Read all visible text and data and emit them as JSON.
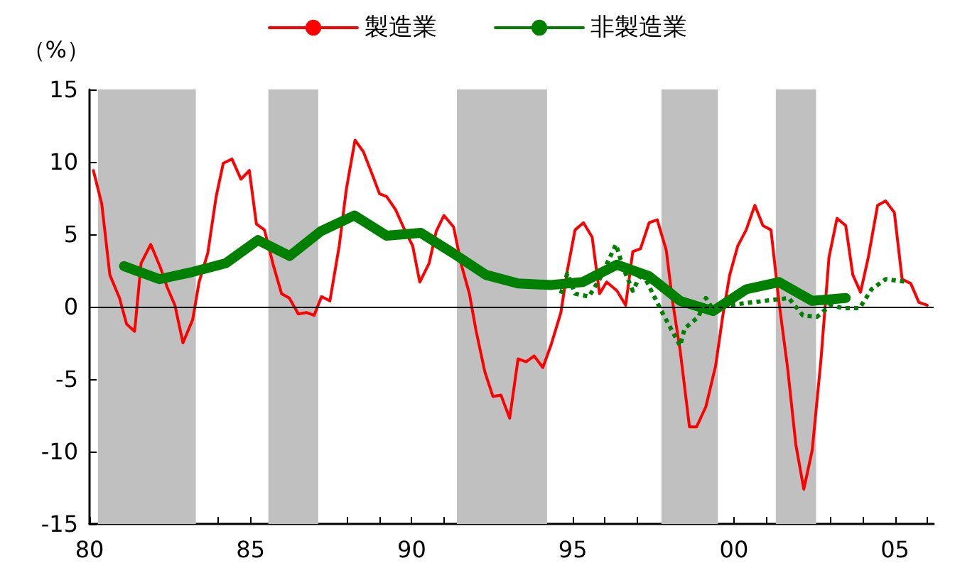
{
  "chart_data": {
    "type": "line",
    "ylabel": "（%）",
    "xlim": [
      1980,
      2006.2
    ],
    "ylim": [
      -15,
      15
    ],
    "xticks": [
      {
        "value": 1980,
        "label": "80"
      },
      {
        "value": 1981,
        "label": null
      },
      {
        "value": 1982,
        "label": null
      },
      {
        "value": 1983,
        "label": null
      },
      {
        "value": 1984,
        "label": null
      },
      {
        "value": 1985,
        "label": "85"
      },
      {
        "value": 1986,
        "label": null
      },
      {
        "value": 1987,
        "label": null
      },
      {
        "value": 1988,
        "label": null
      },
      {
        "value": 1989,
        "label": null
      },
      {
        "value": 1990,
        "label": "90"
      },
      {
        "value": 1991,
        "label": null
      },
      {
        "value": 1992,
        "label": null
      },
      {
        "value": 1993,
        "label": null
      },
      {
        "value": 1994,
        "label": null
      },
      {
        "value": 1995,
        "label": "95"
      },
      {
        "value": 1996,
        "label": null
      },
      {
        "value": 1997,
        "label": null
      },
      {
        "value": 1998,
        "label": null
      },
      {
        "value": 1999,
        "label": null
      },
      {
        "value": 2000,
        "label": "00"
      },
      {
        "value": 2001,
        "label": null
      },
      {
        "value": 2002,
        "label": null
      },
      {
        "value": 2003,
        "label": null
      },
      {
        "value": 2004,
        "label": null
      },
      {
        "value": 2005,
        "label": "05"
      },
      {
        "value": 2006,
        "label": null
      }
    ],
    "yticks": [
      -15,
      -10,
      -5,
      0,
      5,
      10,
      15
    ],
    "grid": false,
    "legend": "top",
    "marker": "none",
    "bands": [
      {
        "axis": "x",
        "from": 1980.26,
        "to": 1983.3,
        "color": "#c0c0c0"
      },
      {
        "axis": "x",
        "from": 1985.55,
        "to": 1987.1,
        "color": "#c0c0c0"
      },
      {
        "axis": "x",
        "from": 1991.4,
        "to": 1994.2,
        "color": "#c0c0c0"
      },
      {
        "axis": "x",
        "from": 1997.75,
        "to": 1999.5,
        "color": "#c0c0c0"
      },
      {
        "axis": "x",
        "from": 2001.3,
        "to": 2002.55,
        "color": "#c0c0c0"
      }
    ],
    "ref_lines": [
      {
        "axis": "y",
        "value": 0,
        "color": "#000000"
      }
    ],
    "series": [
      {
        "name": "製造業",
        "color": "#ff0000",
        "line_style": "solid",
        "x": [
          1980.12,
          1980.38,
          1980.63,
          1980.93,
          1981.15,
          1981.4,
          1981.6,
          1981.9,
          1982.2,
          1982.4,
          1982.65,
          1982.9,
          1983.2,
          1983.4,
          1983.67,
          1983.93,
          1984.15,
          1984.42,
          1984.7,
          1984.96,
          1985.18,
          1985.43,
          1985.7,
          1985.96,
          1986.2,
          1986.48,
          1986.73,
          1986.97,
          1987.2,
          1987.46,
          1987.75,
          1987.97,
          1988.24,
          1988.5,
          1988.78,
          1989.0,
          1989.22,
          1989.5,
          1989.74,
          1990.03,
          1990.25,
          1990.54,
          1990.76,
          1991.0,
          1991.3,
          1991.54,
          1991.79,
          1992.0,
          1992.27,
          1992.52,
          1992.77,
          1993.04,
          1993.3,
          1993.55,
          1993.8,
          1994.07,
          1994.33,
          1994.63,
          1994.83,
          1995.07,
          1995.33,
          1995.6,
          1995.83,
          1996.05,
          1996.37,
          1996.64,
          1996.86,
          1997.1,
          1997.37,
          1997.62,
          1997.9,
          1998.1,
          1998.33,
          1998.62,
          1998.84,
          1999.13,
          1999.43,
          1999.65,
          1999.87,
          2000.12,
          2000.38,
          2000.65,
          2000.9,
          2001.15,
          2001.4,
          2001.67,
          2001.92,
          2002.17,
          2002.43,
          2002.7,
          2002.95,
          2003.2,
          2003.47,
          2003.69,
          2003.93,
          2004.17,
          2004.46,
          2004.71,
          2004.98,
          2005.22,
          2005.49,
          2005.74,
          2006.0
        ],
        "values": [
          9.4,
          7.1,
          2.2,
          0.6,
          -1.2,
          -1.7,
          3.0,
          4.3,
          2.7,
          1.4,
          0.1,
          -2.5,
          -0.9,
          1.7,
          3.7,
          7.6,
          9.9,
          10.2,
          8.8,
          9.4,
          5.7,
          5.3,
          2.9,
          0.9,
          0.6,
          -0.5,
          -0.4,
          -0.6,
          0.7,
          0.4,
          4.2,
          8.1,
          11.5,
          10.7,
          9.1,
          7.8,
          7.6,
          6.7,
          5.5,
          4.2,
          1.7,
          3.0,
          5.2,
          6.3,
          5.5,
          2.9,
          0.9,
          -1.7,
          -4.5,
          -6.2,
          -6.1,
          -7.7,
          -3.6,
          -3.8,
          -3.4,
          -4.2,
          -2.6,
          -0.4,
          2.5,
          5.3,
          5.8,
          4.8,
          0.9,
          1.7,
          1.1,
          0.1,
          3.8,
          4.0,
          5.8,
          6.0,
          3.9,
          0.3,
          -3.0,
          -8.3,
          -8.3,
          -6.9,
          -4.1,
          -0.7,
          2.2,
          4.2,
          5.3,
          7.0,
          5.6,
          5.3,
          0.3,
          -4.3,
          -9.5,
          -12.6,
          -9.9,
          -3.7,
          3.4,
          6.1,
          5.6,
          2.2,
          1.0,
          3.4,
          7.0,
          7.3,
          6.5,
          1.9,
          1.6,
          0.3,
          0.1
        ]
      },
      {
        "name": "非製造業",
        "color": "#008000",
        "line_style": "solid",
        "x": [
          1981.07,
          1982.17,
          1983.2,
          1984.23,
          1985.23,
          1986.21,
          1987.17,
          1988.22,
          1989.22,
          1990.28,
          1991.28,
          1992.3,
          1993.3,
          1994.33,
          1995.31,
          1996.37,
          1997.37,
          1998.33,
          1999.35,
          2000.38,
          2001.4,
          2002.43,
          2003.47
        ],
        "values": [
          2.8,
          1.9,
          2.4,
          3.0,
          4.6,
          3.5,
          5.2,
          6.3,
          4.9,
          5.1,
          3.7,
          2.2,
          1.6,
          1.5,
          1.7,
          2.9,
          2.1,
          0.4,
          -0.3,
          1.2,
          1.7,
          0.4,
          0.6
        ]
      },
      {
        "color": "#008000",
        "line_style": "dotted",
        "x": [
          1994.63,
          1994.83,
          1995.07,
          1995.5,
          1995.83,
          1996.34,
          1996.56,
          1996.86,
          1997.15,
          1997.48,
          1997.75,
          1998.04,
          1998.33,
          1998.47,
          1998.9,
          1999.13,
          1999.35,
          1999.8,
          2001.7,
          2002.14,
          2002.58,
          2003.0,
          2003.39,
          2003.9,
          2004.27,
          2004.71,
          2005.4
        ],
        "values": [
          0.9,
          2.3,
          0.9,
          0.7,
          1.9,
          4.3,
          2.7,
          1.1,
          2.4,
          0.9,
          -0.3,
          -1.5,
          -2.7,
          -1.5,
          -0.7,
          0.6,
          -0.2,
          0.1,
          0.6,
          -0.6,
          -0.7,
          0.1,
          -0.1,
          -0.1,
          1.2,
          1.9,
          1.7
        ]
      }
    ]
  }
}
